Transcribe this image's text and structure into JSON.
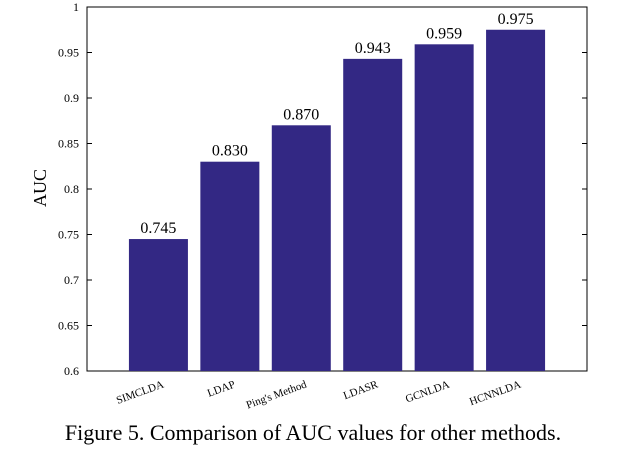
{
  "chart_data": {
    "type": "bar",
    "categories": [
      "SIMCLDA",
      "LDAP",
      "Ping's Method",
      "LDASR",
      "GCNLDA",
      "HCNNLDA"
    ],
    "values": [
      0.745,
      0.83,
      0.87,
      0.943,
      0.959,
      0.975
    ],
    "data_labels": [
      "0.745",
      "0.830",
      "0.870",
      "0.943",
      "0.959",
      "0.975"
    ],
    "xlabel": "",
    "ylabel": "AUC",
    "ylim": [
      0.6,
      1
    ],
    "yticks": [
      0.6,
      0.65,
      0.7,
      0.75,
      0.8,
      0.85,
      0.9,
      0.95,
      1
    ],
    "ytick_labels": [
      "0.6",
      "0.65",
      "0.7",
      "0.75",
      "0.8",
      "0.85",
      "0.9",
      "0.95",
      "1"
    ],
    "grid": false,
    "bar_color": "#332884"
  },
  "caption": "Figure 5. Comparison of AUC values for other methods."
}
